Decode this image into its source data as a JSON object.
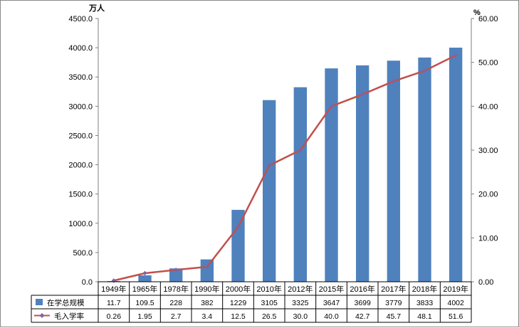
{
  "chart_data": {
    "type": "bar",
    "categories": [
      "1949年",
      "1965年",
      "1978年",
      "1990年",
      "2000年",
      "2010年",
      "2012年",
      "2015年",
      "2016年",
      "2017年",
      "2018年",
      "2019年"
    ],
    "series": [
      {
        "name": "在学总规模",
        "kind": "bar",
        "axis": "left",
        "color": "#4f81bd",
        "values": [
          11.7,
          109.5,
          228,
          382,
          1229,
          3105,
          3325,
          3647,
          3699,
          3779,
          3833,
          4002
        ],
        "labels": [
          "11.7",
          "109.5",
          "228",
          "382",
          "1229",
          "3105",
          "3325",
          "3647",
          "3699",
          "3779",
          "3833",
          "4002"
        ]
      },
      {
        "name": "毛入学率",
        "kind": "line",
        "axis": "right",
        "color": "#c0504d",
        "marker_color": "#8064a2",
        "values": [
          0.26,
          1.95,
          2.7,
          3.4,
          12.5,
          26.5,
          30.0,
          40.0,
          42.7,
          45.7,
          48.1,
          51.6
        ],
        "labels": [
          "0.26",
          "1.95",
          "2.7",
          "3.4",
          "12.5",
          "26.5",
          "30.0",
          "40.0",
          "42.7",
          "45.7",
          "48.1",
          "51.6"
        ]
      }
    ],
    "y_left": {
      "unit": "万人",
      "min": 0,
      "max": 4500,
      "step": 500,
      "tick_labels": [
        "0.0",
        "500.0",
        "1000.0",
        "1500.0",
        "2000.0",
        "2500.0",
        "3000.0",
        "3500.0",
        "4000.0",
        "4500.0"
      ]
    },
    "y_right": {
      "unit": "%",
      "min": 0,
      "max": 60,
      "step": 10,
      "tick_labels": [
        "0.00",
        "10.00",
        "20.00",
        "30.00",
        "40.00",
        "50.00",
        "60.00"
      ]
    },
    "grid": false,
    "legend": "data-table-below"
  }
}
